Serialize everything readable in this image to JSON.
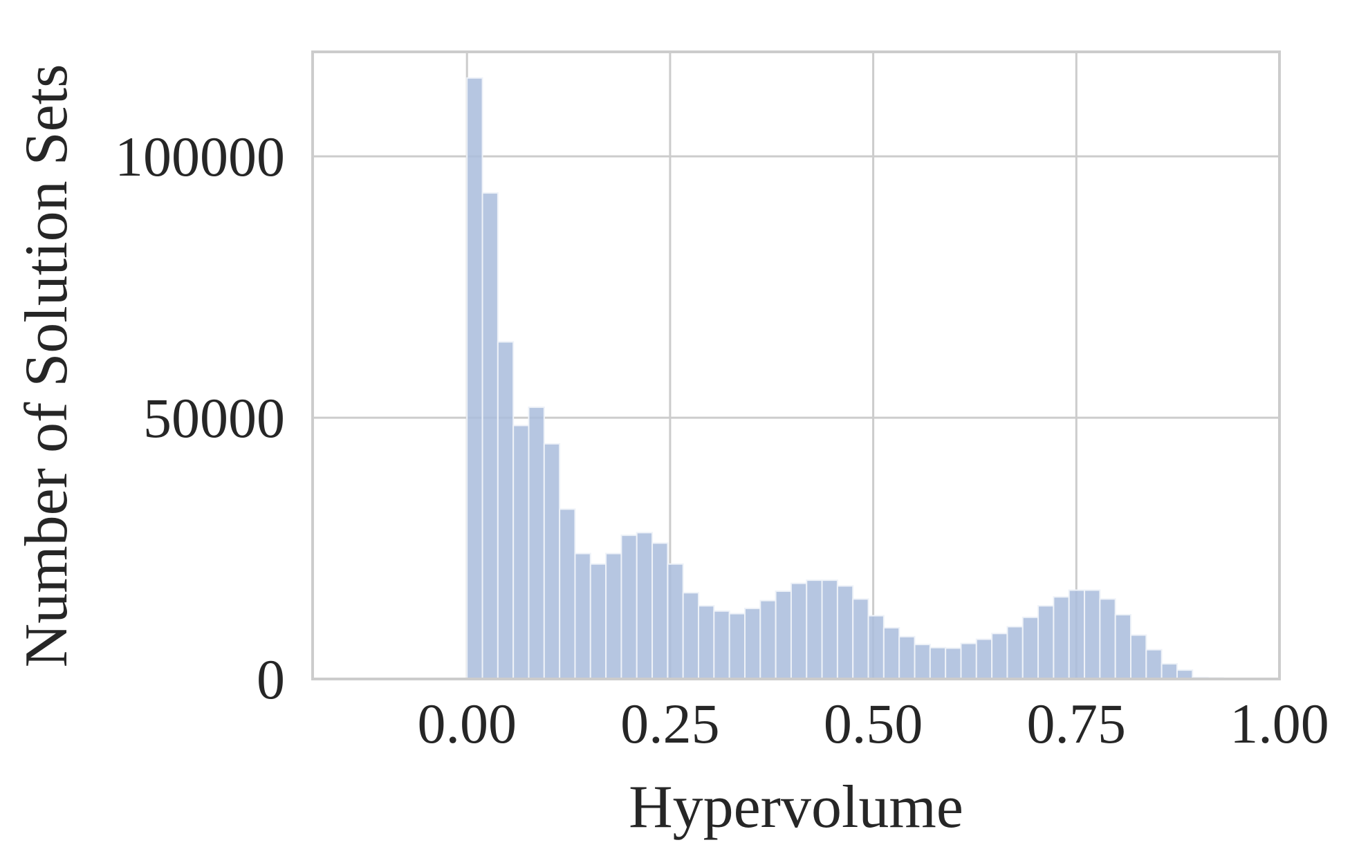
{
  "chart_data": {
    "type": "bar",
    "title": "",
    "xlabel": "Hypervolume",
    "ylabel": "Number of Solution Sets",
    "xlim": [
      -0.19,
      1.0
    ],
    "ylim": [
      0,
      120000
    ],
    "xticks": [
      0.0,
      0.25,
      0.5,
      0.75,
      1.0
    ],
    "xtick_labels": [
      "0.00",
      "0.25",
      "0.50",
      "0.75",
      "1.00"
    ],
    "yticks": [
      0,
      50000,
      100000
    ],
    "ytick_labels": [
      "0",
      "50000",
      "100000"
    ],
    "grid": true,
    "bar_color": "#a9bcdc",
    "bin_width": 0.019,
    "bins_start": [
      0.0,
      0.019,
      0.038,
      0.057,
      0.076,
      0.095,
      0.114,
      0.133,
      0.152,
      0.171,
      0.19,
      0.209,
      0.228,
      0.247,
      0.266,
      0.285,
      0.304,
      0.323,
      0.342,
      0.361,
      0.38,
      0.399,
      0.418,
      0.437,
      0.456,
      0.475,
      0.494,
      0.513,
      0.532,
      0.551,
      0.57,
      0.589,
      0.608,
      0.627,
      0.646,
      0.665,
      0.684,
      0.703,
      0.722,
      0.741,
      0.76,
      0.779,
      0.798,
      0.817,
      0.836,
      0.855,
      0.874,
      0.893,
      0.912,
      0.931
    ],
    "values": [
      115000,
      93000,
      64500,
      48500,
      52000,
      45000,
      32500,
      24000,
      22000,
      24000,
      27500,
      28000,
      26000,
      22000,
      16500,
      14000,
      13000,
      12500,
      13500,
      15000,
      16800,
      18300,
      18900,
      18900,
      17800,
      15300,
      12100,
      9800,
      8100,
      6600,
      6000,
      5900,
      6800,
      7600,
      8700,
      10000,
      11800,
      14000,
      15700,
      17000,
      17000,
      15300,
      12300,
      8400,
      5600,
      2900,
      1700,
      300,
      200,
      0
    ]
  }
}
